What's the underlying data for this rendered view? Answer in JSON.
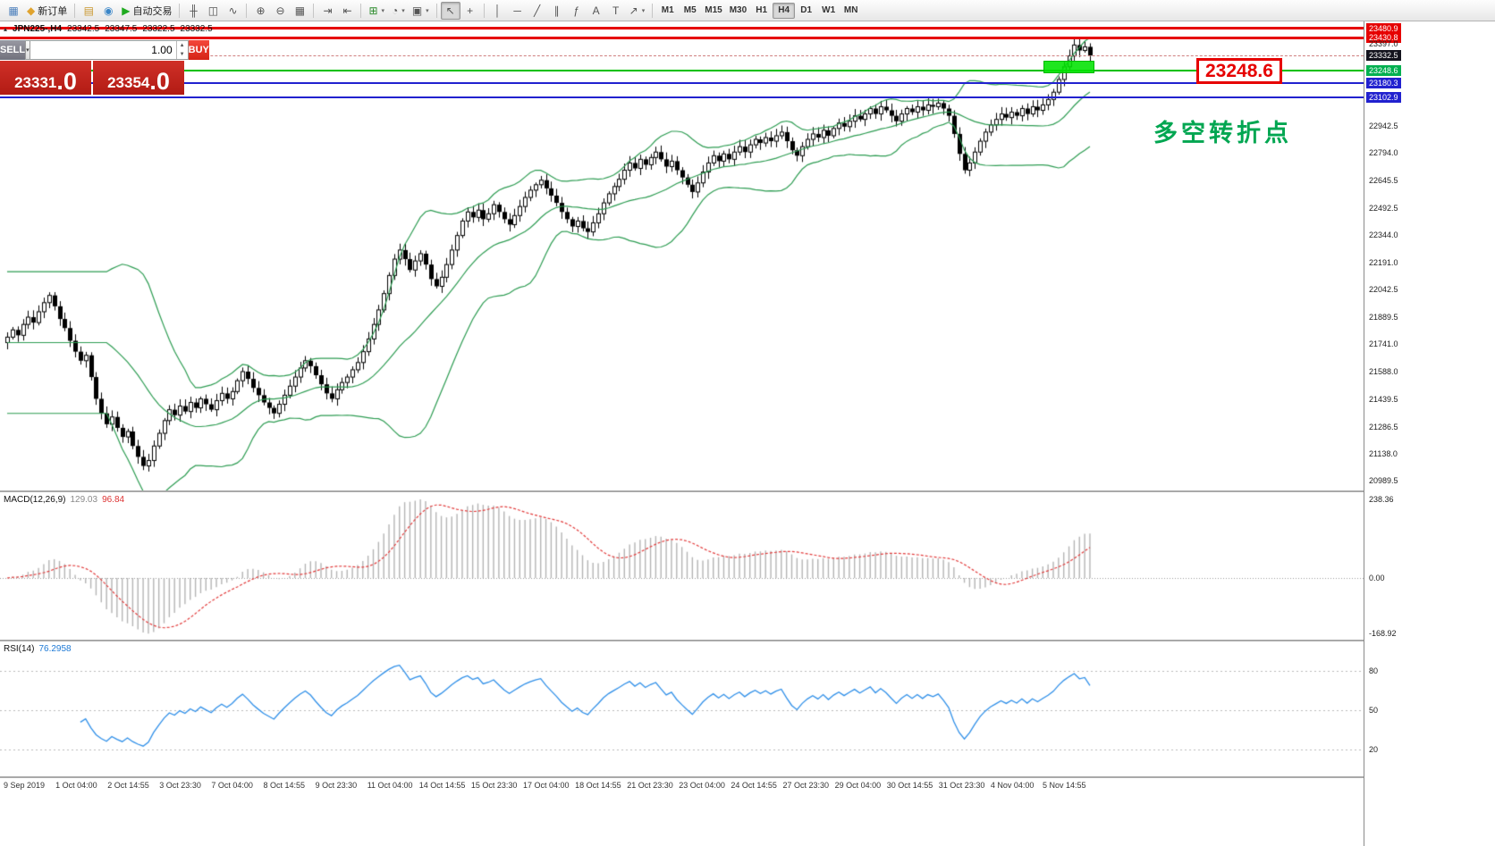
{
  "toolbar": {
    "groups": [
      {
        "items": [
          {
            "name": "new-chart-button",
            "glyph": "▦",
            "glyph_color": "#4a7ebb"
          },
          {
            "name": "new-order-button",
            "glyph": "◆",
            "glyph_color": "#e0a32e",
            "label": "新订单"
          }
        ]
      },
      {
        "items": [
          {
            "name": "profiles-button",
            "glyph": "▤",
            "glyph_color": "#c9972f"
          },
          {
            "name": "data-window-button",
            "glyph": "◉",
            "glyph_color": "#3a86c8"
          },
          {
            "name": "autotrading-button",
            "glyph": "▶",
            "glyph_color": "#1faa1f",
            "label": "自动交易"
          }
        ]
      },
      {
        "items": [
          {
            "name": "bar-chart-button",
            "glyph": "╫"
          },
          {
            "name": "candlestick-chart-button",
            "glyph": "◫"
          },
          {
            "name": "line-chart-button",
            "glyph": "∿"
          }
        ]
      },
      {
        "items": [
          {
            "name": "zoom-in-button",
            "glyph": "⊕"
          },
          {
            "name": "zoom-out-button",
            "glyph": "⊖"
          },
          {
            "name": "tile-windows-button",
            "glyph": "▦"
          }
        ]
      },
      {
        "items": [
          {
            "name": "auto-scroll-button",
            "glyph": "⇥"
          },
          {
            "name": "chart-shift-button",
            "glyph": "⇤"
          }
        ]
      },
      {
        "items": [
          {
            "name": "indicators-button",
            "glyph": "⊞",
            "glyph_color": "#2a8a2a",
            "dropdown": true
          },
          {
            "name": "periods-button",
            "glyph": "◔",
            "dropdown": true
          },
          {
            "name": "templates-button",
            "glyph": "▣",
            "dropdown": true
          }
        ]
      },
      {
        "items": [
          {
            "name": "cursor-button",
            "glyph": "↖",
            "active": true
          },
          {
            "name": "crosshair-button",
            "glyph": "+"
          }
        ]
      },
      {
        "items": [
          {
            "name": "vertical-line-button",
            "glyph": "│"
          },
          {
            "name": "horizontal-line-button",
            "glyph": "─"
          },
          {
            "name": "trendline-button",
            "glyph": "╱"
          },
          {
            "name": "channel-button",
            "glyph": "∥"
          },
          {
            "name": "fibonacci-button",
            "glyph": "ƒ"
          },
          {
            "name": "text-button",
            "glyph": "A"
          },
          {
            "name": "text-label-button",
            "glyph": "T"
          },
          {
            "name": "arrows-button",
            "glyph": "↗",
            "dropdown": true
          }
        ]
      }
    ],
    "timeframes": {
      "items": [
        "M1",
        "M5",
        "M15",
        "M30",
        "H1",
        "H4",
        "D1",
        "W1",
        "MN"
      ],
      "active": "H4"
    },
    "right_icons": [
      {
        "name": "mail-icon",
        "glyph": "✉"
      },
      {
        "name": "toolbar-options-icon",
        "glyph": "»"
      }
    ]
  },
  "chart": {
    "ohlc": {
      "symbol": "JPN225-,H4",
      "open": "23342.5",
      "high": "23347.5",
      "low": "23322.5",
      "close": "23332.5"
    },
    "trade_panel": {
      "sell_label": "SELL",
      "buy_label": "BUY",
      "volume": "1.00",
      "sell_price_main": "23331",
      "sell_price_frac": ".0",
      "buy_price_main": "23354",
      "buy_price_frac": ".0"
    },
    "annotations": {
      "price_label": {
        "text": "23248.6",
        "price": 23248.6
      },
      "note": {
        "text": "多空转折点"
      },
      "zone": {
        "candle_from": 199,
        "candle_to": 207,
        "price_top": 23305,
        "price_bottom": 23235
      }
    },
    "price_lines": [
      {
        "name": "resistance-line-23480",
        "price": 23480.9,
        "color": "#e60000",
        "thickness": 3
      },
      {
        "name": "resistance-line-23430",
        "price": 23430.8,
        "color": "#e60000",
        "thickness": 3
      },
      {
        "name": "bid-line",
        "price": 23332.5,
        "color": "#d08080",
        "thickness": 1,
        "dashed": true
      },
      {
        "name": "pivot-line-23248",
        "price": 23248.6,
        "color": "#00c000",
        "thickness": 2
      },
      {
        "name": "support-line-23180",
        "price": 23180.3,
        "color": "#2121cf",
        "thickness": 2
      },
      {
        "name": "support-line-23102",
        "price": 23102.9,
        "color": "#2121cf",
        "thickness": 2
      }
    ],
    "scale_labels": [
      {
        "text": "23480.9",
        "price": 23480.9,
        "type": "red"
      },
      {
        "text": "23430.8",
        "price": 23430.8,
        "type": "red"
      },
      {
        "text": "23397.0",
        "price": 23397.0,
        "type": "plain"
      },
      {
        "text": "23332.5",
        "price": 23332.5,
        "type": "current"
      },
      {
        "text": "23248.6",
        "price": 23248.6,
        "type": "green"
      },
      {
        "text": "23180.3",
        "price": 23180.3,
        "type": "blue"
      },
      {
        "text": "23102.9",
        "price": 23102.9,
        "type": "blue"
      },
      {
        "text": "22942.5",
        "price": 22942.5,
        "type": "plain"
      },
      {
        "text": "22794.0",
        "price": 22794.0,
        "type": "plain"
      },
      {
        "text": "22645.5",
        "price": 22645.5,
        "type": "plain"
      },
      {
        "text": "22492.5",
        "price": 22492.5,
        "type": "plain"
      },
      {
        "text": "22344.0",
        "price": 22344.0,
        "type": "plain"
      },
      {
        "text": "22191.0",
        "price": 22191.0,
        "type": "plain"
      },
      {
        "text": "22042.5",
        "price": 22042.5,
        "type": "plain"
      },
      {
        "text": "21889.5",
        "price": 21889.5,
        "type": "plain"
      },
      {
        "text": "21741.0",
        "price": 21741.0,
        "type": "plain"
      },
      {
        "text": "21588.0",
        "price": 21588.0,
        "type": "plain"
      },
      {
        "text": "21439.5",
        "price": 21439.5,
        "type": "plain"
      },
      {
        "text": "21286.5",
        "price": 21286.5,
        "type": "plain"
      },
      {
        "text": "21138.0",
        "price": 21138.0,
        "type": "plain"
      },
      {
        "text": "20989.5",
        "price": 20989.5,
        "type": "plain"
      }
    ],
    "time_labels": [
      "9 Sep 2019",
      "1 Oct 04:00",
      "2 Oct 14:55",
      "3 Oct 23:30",
      "7 Oct 04:00",
      "8 Oct 14:55",
      "9 Oct 23:30",
      "11 Oct 04:00",
      "14 Oct 14:55",
      "15 Oct 23:30",
      "17 Oct 04:00",
      "18 Oct 14:55",
      "21 Oct 23:30",
      "23 Oct 04:00",
      "24 Oct 14:55",
      "27 Oct 23:30",
      "29 Oct 04:00",
      "30 Oct 14:55",
      "31 Oct 23:30",
      "4 Nov 04:00",
      "5 Nov 14:55"
    ]
  },
  "indicators": {
    "macd": {
      "name": "MACD(12,26,9)",
      "value_main": "129.03",
      "value_signal": "96.84",
      "scale": [
        "238.36",
        "0.00",
        "-168.92"
      ]
    },
    "rsi": {
      "name": "RSI(14)",
      "value": "76.2958",
      "scale": [
        "80",
        "50",
        "20"
      ],
      "levels": [
        80,
        50,
        20
      ]
    }
  },
  "chart_data": {
    "type": "candlestick",
    "symbol": "JPN225",
    "timeframe": "H4",
    "title": "JPN225-,H4",
    "ohlc_current": {
      "open": 23342.5,
      "high": 23347.5,
      "low": 23322.5,
      "close": 23332.5
    },
    "price_axis": {
      "min": 20935,
      "max": 23520
    },
    "overlays": {
      "bollinger_period": 20,
      "bollinger_deviation": 2
    },
    "marked_levels": [
      23480.9,
      23430.8,
      23248.6,
      23180.3,
      23102.9
    ],
    "closes": [
      21780,
      21820,
      21790,
      21850,
      21890,
      21860,
      21920,
      21970,
      22010,
      21950,
      21880,
      21830,
      21760,
      21700,
      21650,
      21680,
      21560,
      21440,
      21360,
      21300,
      21340,
      21280,
      21230,
      21260,
      21180,
      21120,
      21070,
      21100,
      21180,
      21250,
      21320,
      21380,
      21350,
      21400,
      21370,
      21420,
      21390,
      21440,
      21410,
      21380,
      21430,
      21470,
      21440,
      21480,
      21540,
      21590,
      21550,
      21500,
      21460,
      21420,
      21390,
      21360,
      21410,
      21460,
      21510,
      21560,
      21610,
      21650,
      21620,
      21570,
      21520,
      21470,
      21440,
      21490,
      21530,
      21560,
      21600,
      21640,
      21700,
      21770,
      21850,
      21930,
      22020,
      22120,
      22210,
      22260,
      22210,
      22150,
      22200,
      22240,
      22180,
      22100,
      22060,
      22110,
      22180,
      22260,
      22340,
      22420,
      22470,
      22440,
      22480,
      22430,
      22460,
      22510,
      22470,
      22430,
      22400,
      22450,
      22500,
      22550,
      22590,
      22620,
      22645,
      22600,
      22560,
      22520,
      22470,
      22430,
      22390,
      22420,
      22380,
      22360,
      22410,
      22460,
      22520,
      22570,
      22610,
      22650,
      22700,
      22740,
      22710,
      22760,
      22730,
      22770,
      22800,
      22760,
      22720,
      22750,
      22700,
      22660,
      22620,
      22580,
      22630,
      22690,
      22740,
      22780,
      22750,
      22790,
      22760,
      22800,
      22830,
      22800,
      22840,
      22870,
      22850,
      22880,
      22860,
      22890,
      22910,
      22860,
      22810,
      22780,
      22830,
      22870,
      22900,
      22880,
      22920,
      22890,
      22930,
      22960,
      22940,
      22970,
      23000,
      22980,
      23010,
      23040,
      23010,
      23050,
      23030,
      23000,
      22970,
      23010,
      23040,
      23020,
      23050,
      23030,
      23060,
      23050,
      23070,
      23040,
      23000,
      22900,
      22790,
      22700,
      22740,
      22800,
      22860,
      22910,
      22950,
      22980,
      23010,
      22990,
      23020,
      23000,
      23040,
      23010,
      23050,
      23030,
      23060,
      23090,
      23130,
      23200,
      23270,
      23330,
      23390,
      23360,
      23380,
      23332.5
    ]
  }
}
